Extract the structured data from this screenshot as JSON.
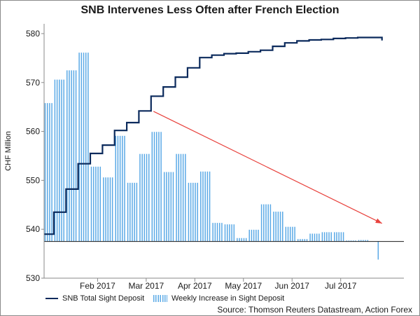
{
  "chart_data": {
    "type": "bar+line",
    "title": "SNB Intervenes Less Often after French Election",
    "xlabel": "",
    "ylabel": "CHF Million",
    "ylim": [
      530,
      582
    ],
    "yticks": [
      530,
      540,
      550,
      560,
      570,
      580
    ],
    "baseline": 537.5,
    "xlim": [
      0,
      7.4
    ],
    "xticks": [
      {
        "label": "Feb 2017",
        "month": 1.1
      },
      {
        "label": "Mar 2017",
        "month": 2.1
      },
      {
        "label": "Apr 2017",
        "month": 3.1
      },
      {
        "label": "May 2017",
        "month": 4.1
      },
      {
        "label": "Jun 2017",
        "month": 5.1
      },
      {
        "label": "Jul 2017",
        "month": 6.1
      }
    ],
    "series": [
      {
        "name": "SNB Total Sight Deposit",
        "kind": "step-line",
        "color": "#0b2a5c",
        "points": [
          [
            0.0,
            539.0
          ],
          [
            0.2,
            543.5
          ],
          [
            0.45,
            548.2
          ],
          [
            0.7,
            553.4
          ],
          [
            0.95,
            555.5
          ],
          [
            1.2,
            557.2
          ],
          [
            1.45,
            560.2
          ],
          [
            1.7,
            561.8
          ],
          [
            1.95,
            564.2
          ],
          [
            2.2,
            567.2
          ],
          [
            2.45,
            569.1
          ],
          [
            2.7,
            571.1
          ],
          [
            2.95,
            573.0
          ],
          [
            3.2,
            575.1
          ],
          [
            3.45,
            575.6
          ],
          [
            3.7,
            575.9
          ],
          [
            3.95,
            576.0
          ],
          [
            4.2,
            576.3
          ],
          [
            4.45,
            576.6
          ],
          [
            4.7,
            577.4
          ],
          [
            4.95,
            578.1
          ],
          [
            5.2,
            578.5
          ],
          [
            5.45,
            578.7
          ],
          [
            5.7,
            578.8
          ],
          [
            5.95,
            579.0
          ],
          [
            6.2,
            579.1
          ],
          [
            6.45,
            579.2
          ],
          [
            6.8,
            579.2
          ],
          [
            6.95,
            578.6
          ]
        ]
      },
      {
        "name": "Weekly Increase in Sight Deposit",
        "kind": "bar",
        "color": "#5aa9e6",
        "bars": [
          [
            0.0,
            0.2,
            565.8
          ],
          [
            0.2,
            0.45,
            570.6
          ],
          [
            0.45,
            0.7,
            572.5
          ],
          [
            0.7,
            0.95,
            576.1
          ],
          [
            0.95,
            1.2,
            552.8
          ],
          [
            1.2,
            1.45,
            550.6
          ],
          [
            1.45,
            1.7,
            559.1
          ],
          [
            1.7,
            1.95,
            549.5
          ],
          [
            1.95,
            2.2,
            555.4
          ],
          [
            2.2,
            2.45,
            559.9
          ],
          [
            2.45,
            2.7,
            551.7
          ],
          [
            2.7,
            2.95,
            555.4
          ],
          [
            2.95,
            3.2,
            549.5
          ],
          [
            3.2,
            3.45,
            551.8
          ],
          [
            3.45,
            3.7,
            541.3
          ],
          [
            3.7,
            3.95,
            541.0
          ],
          [
            3.95,
            4.2,
            538.2
          ],
          [
            4.2,
            4.45,
            539.9
          ],
          [
            4.45,
            4.7,
            545.1
          ],
          [
            4.7,
            4.95,
            543.6
          ],
          [
            4.95,
            5.2,
            540.5
          ],
          [
            5.2,
            5.45,
            538.0
          ],
          [
            5.45,
            5.7,
            539.1
          ],
          [
            5.7,
            5.95,
            539.4
          ],
          [
            5.95,
            6.2,
            539.4
          ],
          [
            6.2,
            6.45,
            537.7
          ],
          [
            6.45,
            6.7,
            537.8
          ],
          [
            6.85,
            6.92,
            533.8
          ]
        ]
      }
    ],
    "annotations": [
      {
        "type": "arrow",
        "color": "#e8413c",
        "from": [
          2.25,
          564.1
        ],
        "to": [
          6.95,
          541.2
        ]
      }
    ],
    "legend": [
      "SNB Total Sight Deposit",
      "Weekly Increase in Sight Deposit"
    ],
    "legend_position": "bottom-left",
    "source": "Source: Thomson Reuters Datastream, Action Forex"
  }
}
